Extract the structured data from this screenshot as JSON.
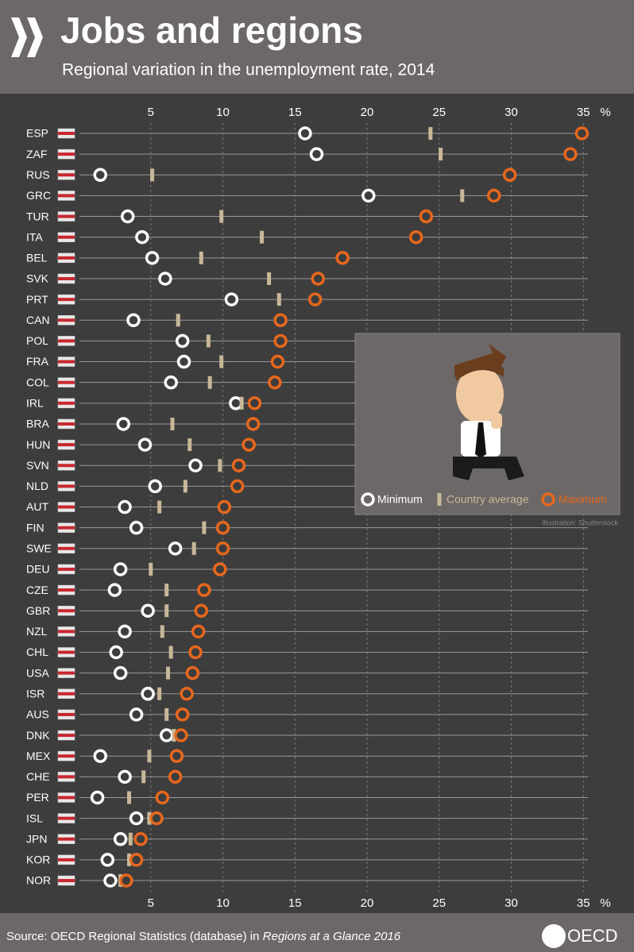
{
  "chart_data": {
    "type": "dot",
    "title": "Jobs and regions",
    "subtitle": "Regional variation in the unemployment rate, 2014",
    "x_unit": "%",
    "xlim": [
      0,
      36
    ],
    "xticks": [
      5,
      10,
      15,
      20,
      25,
      30,
      35
    ],
    "grid": true,
    "categories": [
      "ESP",
      "ZAF",
      "RUS",
      "GRC",
      "TUR",
      "ITA",
      "BEL",
      "SVK",
      "PRT",
      "CAN",
      "POL",
      "FRA",
      "COL",
      "IRL",
      "BRA",
      "HUN",
      "SVN",
      "NLD",
      "AUT",
      "FIN",
      "SWE",
      "DEU",
      "CZE",
      "GBR",
      "NZL",
      "CHL",
      "USA",
      "ISR",
      "AUS",
      "DNK",
      "MEX",
      "CHE",
      "PER",
      "ISL",
      "JPN",
      "KOR",
      "NOR"
    ],
    "series": [
      {
        "name": "Minimum",
        "color": "#ffffff",
        "values": [
          15.7,
          16.5,
          1.5,
          20.1,
          3.4,
          4.4,
          5.1,
          6.0,
          10.6,
          3.8,
          7.2,
          7.3,
          6.4,
          10.9,
          3.1,
          4.6,
          8.1,
          5.3,
          3.2,
          4.0,
          6.7,
          2.9,
          2.5,
          4.8,
          3.2,
          2.6,
          2.9,
          4.8,
          4.0,
          6.1,
          1.5,
          3.2,
          1.3,
          4.0,
          2.9,
          2.0,
          2.2
        ]
      },
      {
        "name": "Country average",
        "color": "#c8b898",
        "values": [
          24.4,
          25.1,
          5.1,
          26.6,
          9.9,
          12.7,
          8.5,
          13.2,
          13.9,
          6.9,
          9.0,
          9.9,
          9.1,
          11.3,
          6.5,
          7.7,
          9.8,
          7.4,
          5.6,
          8.7,
          8.0,
          5.0,
          6.1,
          6.1,
          5.8,
          6.4,
          6.2,
          5.6,
          6.1,
          6.6,
          4.9,
          4.5,
          3.5,
          4.9,
          3.6,
          3.5,
          2.9
        ]
      },
      {
        "name": "Maximum",
        "color": "#e8671c",
        "values": [
          34.9,
          34.1,
          29.9,
          28.8,
          24.1,
          23.4,
          18.3,
          16.6,
          16.4,
          14.0,
          14.0,
          13.8,
          13.6,
          12.2,
          12.1,
          11.8,
          11.1,
          11.0,
          10.1,
          10.0,
          10.0,
          9.8,
          8.7,
          8.5,
          8.3,
          8.1,
          7.9,
          7.5,
          7.2,
          7.1,
          6.8,
          6.7,
          5.8,
          5.4,
          4.3,
          4.0,
          3.3
        ]
      }
    ],
    "illustration_credit": "Illustration: Shutterstock",
    "source": {
      "text": "Source: OECD Regional Statistics (database) in ",
      "italic": "Regions at a Glance 2016"
    },
    "logo": "OECD"
  }
}
